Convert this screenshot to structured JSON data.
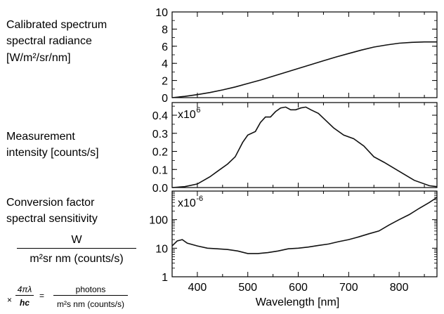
{
  "labels": {
    "panel1": [
      "Calibrated spectrum",
      "spectral radiance",
      "[W/m²/sr/nm]"
    ],
    "panel2": [
      "Measurement",
      "intensity [counts/s]"
    ],
    "panel3": [
      "Conversion factor",
      "spectral sensitivity"
    ],
    "unit_num": "W",
    "unit_den": "m²sr nm (counts/s)",
    "photon_prefix": "×",
    "photon_frac_num": "4πλ",
    "photon_frac_den": "hc",
    "photon_eq": "=",
    "photon_num": "photons",
    "photon_den": "m²s nm (counts/s)"
  },
  "chart_data": [
    {
      "type": "line",
      "name": "Calibrated spectrum spectral radiance",
      "ylabel": "Calibrated spectrum spectral radiance [W/m²/sr/nm]",
      "ylim": [
        0,
        10
      ],
      "yticks": [
        "0",
        "2",
        "4",
        "6",
        "8",
        "10"
      ],
      "xlim": [
        350,
        875
      ],
      "x": [
        350,
        375,
        400,
        425,
        450,
        475,
        500,
        525,
        550,
        575,
        600,
        625,
        650,
        675,
        700,
        725,
        750,
        775,
        800,
        825,
        850,
        875
      ],
      "y": [
        0.0,
        0.15,
        0.35,
        0.6,
        0.9,
        1.25,
        1.65,
        2.05,
        2.5,
        2.95,
        3.4,
        3.85,
        4.3,
        4.75,
        5.15,
        5.55,
        5.9,
        6.15,
        6.35,
        6.45,
        6.5,
        6.5
      ]
    },
    {
      "type": "line",
      "name": "Measurement intensity",
      "ylabel": "Measurement intensity [counts/s]",
      "multiplier": "x10",
      "multiplier_exp": "6",
      "ylim": [
        0,
        0.47
      ],
      "yticks": [
        "0.0",
        "0.1",
        "0.2",
        "0.3",
        "0.4"
      ],
      "xlim": [
        350,
        875
      ],
      "x": [
        350,
        375,
        400,
        425,
        440,
        460,
        475,
        490,
        500,
        515,
        525,
        535,
        545,
        555,
        565,
        575,
        585,
        595,
        605,
        615,
        625,
        640,
        655,
        670,
        690,
        710,
        730,
        750,
        770,
        800,
        830,
        860,
        875
      ],
      "y": [
        0.0,
        0.005,
        0.02,
        0.06,
        0.09,
        0.13,
        0.17,
        0.25,
        0.29,
        0.31,
        0.36,
        0.39,
        0.39,
        0.42,
        0.44,
        0.445,
        0.43,
        0.43,
        0.44,
        0.445,
        0.43,
        0.41,
        0.37,
        0.33,
        0.29,
        0.27,
        0.23,
        0.17,
        0.14,
        0.09,
        0.04,
        0.01,
        0.005
      ]
    },
    {
      "type": "line",
      "name": "Conversion factor spectral sensitivity",
      "ylabel": "Conversion factor spectral sensitivity",
      "multiplier": "x10",
      "multiplier_exp": "-6",
      "yscale": "log",
      "ylim": [
        1,
        1000
      ],
      "yticks": [
        "1",
        "10",
        "100"
      ],
      "xlim": [
        350,
        875
      ],
      "xlabel": "Wavelength [nm]",
      "xticks": [
        "400",
        "500",
        "600",
        "700",
        "800"
      ],
      "x": [
        350,
        360,
        370,
        380,
        400,
        420,
        440,
        460,
        480,
        500,
        520,
        540,
        560,
        580,
        600,
        620,
        640,
        660,
        680,
        700,
        720,
        740,
        760,
        780,
        800,
        820,
        840,
        860,
        875
      ],
      "y": [
        12,
        18,
        20,
        15,
        12,
        10,
        9.5,
        9,
        8,
        6.5,
        6.5,
        7,
        8,
        9.5,
        10,
        11,
        12.5,
        14,
        17,
        20,
        25,
        32,
        40,
        65,
        100,
        150,
        250,
        400,
        600
      ]
    }
  ]
}
